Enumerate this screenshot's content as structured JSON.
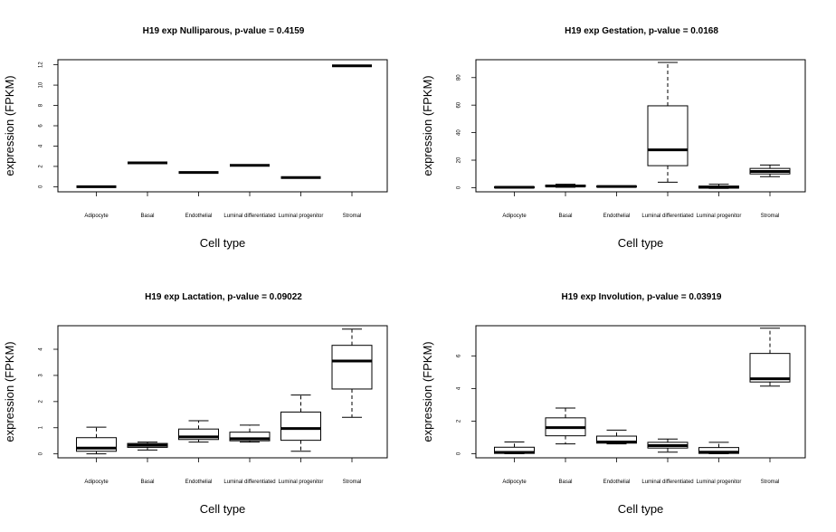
{
  "chart_data": [
    {
      "type": "box",
      "title": "H19 exp Nulliparous, p-value = 0.4159",
      "xlabel": "Cell type",
      "ylabel": "expression (FPKM)",
      "ylim": [
        -0.5,
        12.5
      ],
      "yticks": [
        0,
        2,
        4,
        6,
        8,
        10,
        12
      ],
      "categories": [
        "Adipocyte",
        "Basal",
        "Endothelial",
        "Luminal differentiated",
        "Luminal progenitor",
        "Stromal"
      ],
      "boxes": [
        {
          "min": 0.0,
          "q1": 0.0,
          "median": 0.0,
          "q3": 0.0,
          "max": 0.0
        },
        {
          "min": 2.35,
          "q1": 2.35,
          "median": 2.35,
          "q3": 2.35,
          "max": 2.35
        },
        {
          "min": 1.4,
          "q1": 1.4,
          "median": 1.4,
          "q3": 1.4,
          "max": 1.4
        },
        {
          "min": 2.1,
          "q1": 2.1,
          "median": 2.1,
          "q3": 2.1,
          "max": 2.1
        },
        {
          "min": 0.9,
          "q1": 0.9,
          "median": 0.9,
          "q3": 0.9,
          "max": 0.9
        },
        {
          "min": 11.9,
          "q1": 11.9,
          "median": 11.9,
          "q3": 11.9,
          "max": 11.9
        }
      ]
    },
    {
      "type": "box",
      "title": "H19 exp Gestation, p-value = 0.0168",
      "xlabel": "Cell type",
      "ylabel": "expression (FPKM)",
      "ylim": [
        -3,
        93
      ],
      "yticks": [
        0,
        20,
        40,
        60,
        80
      ],
      "categories": [
        "Adipocyte",
        "Basal",
        "Endothelial",
        "Luminal differentiated",
        "Luminal progenitor",
        "Stromal"
      ],
      "boxes": [
        {
          "min": 0.0,
          "q1": 0.0,
          "median": 0.3,
          "q3": 0.6,
          "max": 0.8
        },
        {
          "min": 0.3,
          "q1": 0.8,
          "median": 1.2,
          "q3": 1.8,
          "max": 2.5
        },
        {
          "min": 0.5,
          "q1": 0.6,
          "median": 0.9,
          "q3": 1.1,
          "max": 1.2
        },
        {
          "min": 4.0,
          "q1": 16.0,
          "median": 27.5,
          "q3": 59.5,
          "max": 91.0
        },
        {
          "min": -0.5,
          "q1": -0.3,
          "median": 0.3,
          "q3": 1.2,
          "max": 2.5
        },
        {
          "min": 8.0,
          "q1": 10.0,
          "median": 11.8,
          "q3": 14.0,
          "max": 16.5
        }
      ]
    },
    {
      "type": "box",
      "title": "H19 exp Lactation, p-value = 0.09022",
      "xlabel": "Cell type",
      "ylabel": "expression (FPKM)",
      "ylim": [
        -0.15,
        4.9
      ],
      "yticks": [
        0,
        1,
        2,
        3,
        4
      ],
      "categories": [
        "Adipocyte",
        "Basal",
        "Endothelial",
        "Luminal differentiated",
        "Luminal progenitor",
        "Stromal"
      ],
      "boxes": [
        {
          "min": 0.0,
          "q1": 0.1,
          "median": 0.22,
          "q3": 0.62,
          "max": 1.02
        },
        {
          "min": 0.15,
          "q1": 0.25,
          "median": 0.33,
          "q3": 0.4,
          "max": 0.45
        },
        {
          "min": 0.45,
          "q1": 0.55,
          "median": 0.65,
          "q3": 0.95,
          "max": 1.27
        },
        {
          "min": 0.45,
          "q1": 0.5,
          "median": 0.58,
          "q3": 0.83,
          "max": 1.1
        },
        {
          "min": 0.1,
          "q1": 0.52,
          "median": 0.97,
          "q3": 1.6,
          "max": 2.25
        },
        {
          "min": 1.4,
          "q1": 2.48,
          "median": 3.55,
          "q3": 4.15,
          "max": 4.77
        }
      ]
    },
    {
      "type": "box",
      "title": "H19 exp Involution, p-value = 0.03919",
      "xlabel": "Cell type",
      "ylabel": "expression (FPKM)",
      "ylim": [
        -0.25,
        7.85
      ],
      "yticks": [
        0,
        2,
        4,
        6
      ],
      "categories": [
        "Adipocyte",
        "Basal",
        "Endothelial",
        "Luminal differentiated",
        "Luminal progenitor",
        "Stromal"
      ],
      "boxes": [
        {
          "min": 0.0,
          "q1": 0.02,
          "median": 0.08,
          "q3": 0.4,
          "max": 0.72
        },
        {
          "min": 0.6,
          "q1": 1.1,
          "median": 1.6,
          "q3": 2.2,
          "max": 2.8
        },
        {
          "min": 0.6,
          "q1": 0.65,
          "median": 0.72,
          "q3": 1.08,
          "max": 1.45
        },
        {
          "min": 0.1,
          "q1": 0.35,
          "median": 0.5,
          "q3": 0.7,
          "max": 0.9
        },
        {
          "min": 0.0,
          "q1": 0.02,
          "median": 0.1,
          "q3": 0.38,
          "max": 0.7
        },
        {
          "min": 4.15,
          "q1": 4.4,
          "median": 4.6,
          "q3": 6.15,
          "max": 7.7
        }
      ]
    }
  ]
}
